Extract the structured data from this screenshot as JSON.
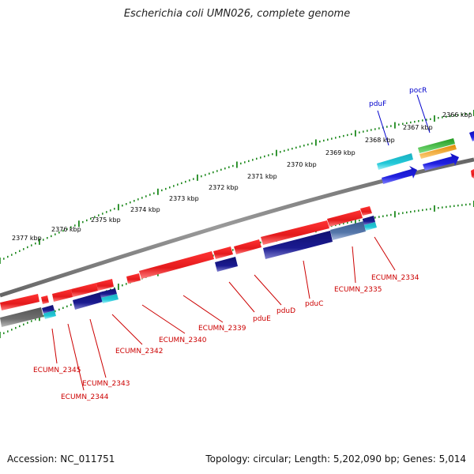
{
  "title": "Escherichia coli UMN026, complete genome",
  "footer": {
    "accession": "Accession: NC_011751",
    "topology": "Topology: circular; Length: 5,202,090 bp; Genes: 5,014"
  },
  "scale_ticks": [
    "2366 kbp",
    "2367 kbp",
    "2368 kbp",
    "2369 kbp",
    "2370 kbp",
    "2371 kbp",
    "2372 kbp",
    "2373 kbp",
    "2374 kbp",
    "2375 kbp",
    "2376 kbp",
    "2377 kbp"
  ],
  "gene_labels_top": [
    "pocR",
    "pduF"
  ],
  "gene_labels_bottom": [
    "ECUMN_2334",
    "ECUMN_2335",
    "pduC",
    "pduD",
    "pduE",
    "ECUMN_2339",
    "ECUMN_2340",
    "ECUMN_2342",
    "ECUMN_2343",
    "ECUMN_2344",
    "ECUMN_2345"
  ],
  "colors": {
    "plus_cds": "#e41a1c",
    "minus_cds": "#1a1aa0",
    "top_cds": "#1f1fe0",
    "cyan": "#22c8d8",
    "green": "#2eb82e",
    "orange": "#f39c12",
    "grey_cds": "#707070",
    "steel": "#5577aa",
    "backbone": "#808080",
    "tick": "#1f8a1f",
    "label_red": "#cc0000",
    "label_blue": "#0000cc"
  }
}
